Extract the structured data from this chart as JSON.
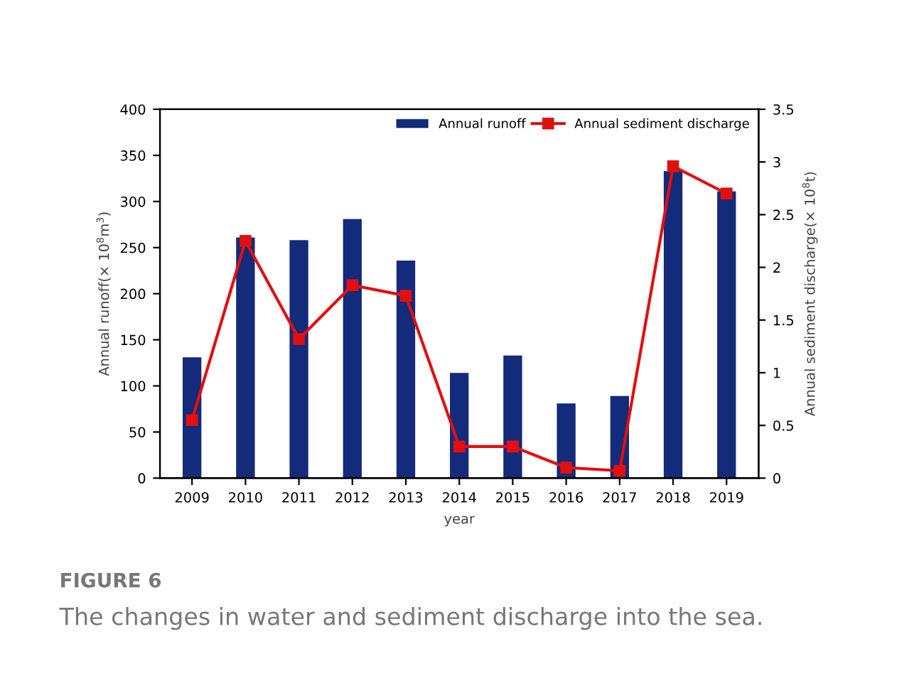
{
  "chart_data": {
    "type": "bar",
    "xlabel": "year",
    "ylabel": "Annual runoff(× 10$^{8}$m$^{3}$)",
    "y2label": "Annual sediment discharge(× 10$^{8}$t)",
    "categories": [
      "2009",
      "2010",
      "2011",
      "2012",
      "2013",
      "2014",
      "2015",
      "2016",
      "2017",
      "2018",
      "2019"
    ],
    "series": [
      {
        "name": "Annual runoff",
        "color": "#142a7a",
        "values": [
          131,
          261,
          258,
          281,
          236,
          114,
          133,
          81,
          89,
          333,
          311
        ]
      },
      {
        "name": "Annual sediment discharge",
        "type": "line",
        "axis": "y2",
        "color": "#e01010",
        "marker": "square",
        "values": [
          0.55,
          2.25,
          1.32,
          1.83,
          1.73,
          0.3,
          0.3,
          0.1,
          0.07,
          2.96,
          2.7
        ]
      }
    ],
    "ylim": [
      0,
      400
    ],
    "yticks": [
      0,
      50,
      100,
      150,
      200,
      250,
      300,
      350,
      400
    ],
    "y2lim": [
      0,
      3.5
    ],
    "y2ticks": [
      0,
      0.5,
      1,
      1.5,
      2,
      2.5,
      3,
      3.5
    ],
    "grid": false,
    "legend": "top right",
    "annotations": [
      "FIGURE 6",
      "The changes in water and sediment discharge into the sea."
    ]
  }
}
